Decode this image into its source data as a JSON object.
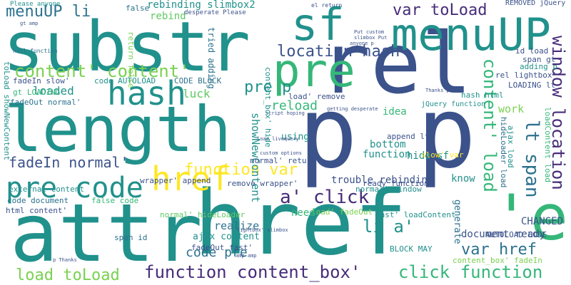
{
  "colors": {
    "teal": "#21918c",
    "navy": "#3b528b",
    "purple": "#472c7a",
    "green": "#5ec962",
    "mint": "#35b779",
    "cyan": "#2c728e",
    "lime": "#7ad151",
    "yellow": "#fde725"
  },
  "words": [
    "substr",
    "length",
    "attr",
    "href",
    "rel",
    "p p",
    "'el",
    "pre",
    "menuUP",
    "sf",
    "hash",
    "pre code",
    "href",
    "a' click",
    "li a'",
    "location hash",
    "var toLoad",
    "content' content'",
    "function var",
    "window location",
    "lt span",
    "content' load",
    "click function",
    "function content_box'",
    "load toLoad",
    "var href",
    "code pre",
    "menuUP li",
    "pre p",
    "fadeIn normal'",
    "loaded",
    "luck",
    "reload",
    "showNewContent",
    "CODE BLOCK",
    "code AUTOLOAD",
    "rebinding slimbox2",
    "rebind",
    "tried adding",
    "return false",
    "false",
    "desperate Please",
    "Please anyone",
    "gt amp",
    "null function",
    "toLoad showNewContent",
    "fadeIn slow'",
    "gt LOADING",
    "fadeOut normal'",
    "external content",
    "code document",
    "html content'",
    "false code",
    "normal' hideLoader",
    "span id",
    "ajax content",
    "fadeOut fast'",
    "realize",
    "wrapper' append",
    "remove wrapper'",
    "normal' return",
    "using",
    "bottom",
    "idea",
    "append lt",
    "hide sf",
    "function",
    "slow' var",
    "trouble rebinding",
    "normal' window",
    "ready function",
    "fast' loadContent",
    "load' fadeOut",
    "need",
    "know",
    "generate",
    "document ready",
    "CHANGED",
    "BLOCK MAY",
    "AUTOLOAD CODE",
    "content_box' fadeIn",
    "p Thanks",
    "amp amp",
    "lightbox' slimbox",
    "el return",
    "REMOVED jQuery",
    "Put custom",
    "slimbox Put",
    "anyone p",
    "id load",
    "span gt",
    "adding p",
    "rel lightbox'",
    "LOADING lt",
    "hash html",
    "Thanks p",
    "jQuery function",
    "getting desperate",
    "script hoping",
    "load livequery",
    "custom options",
    "work",
    "ajax load",
    "hideLoader load",
    "loadContent load",
    "content_box' hide",
    "load' remove"
  ]
}
